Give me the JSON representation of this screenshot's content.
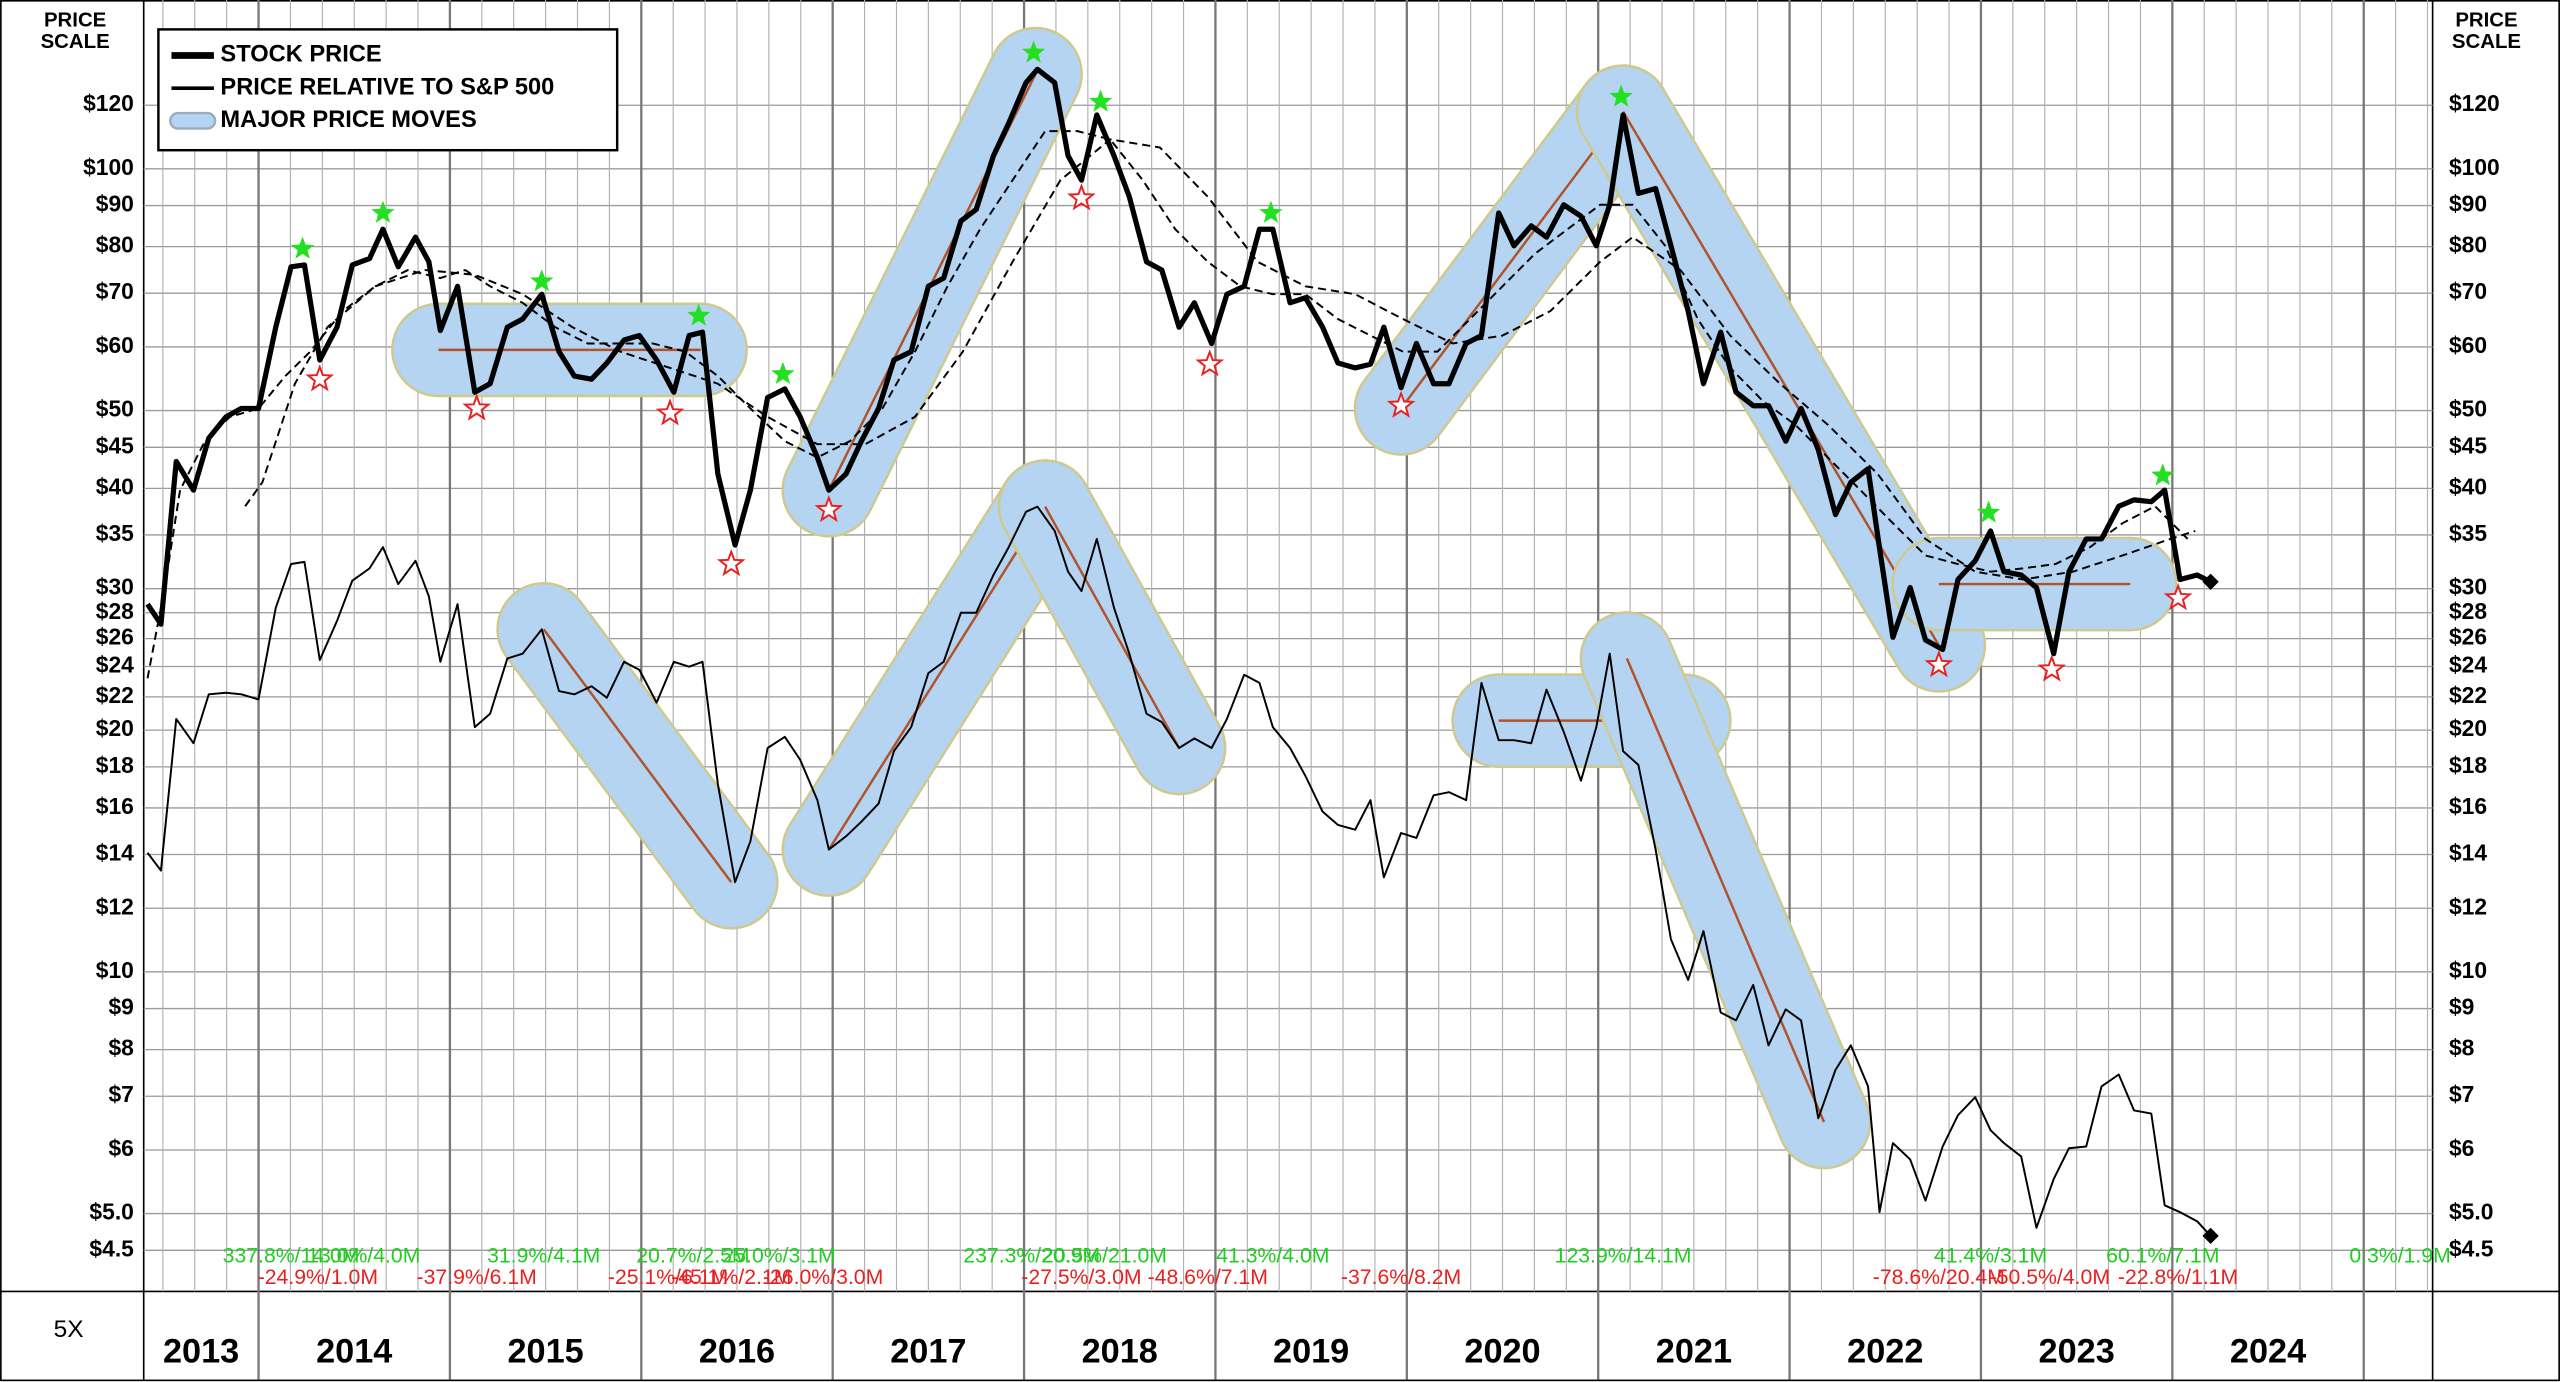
{
  "chart_data": {
    "type": "line",
    "log_scale": true,
    "grid": true,
    "legend": "upper left",
    "ylabel": [
      "PRICE",
      "SCALE"
    ],
    "scale_note": "5X",
    "xlim": [
      2013.4,
      2025.36
    ],
    "xticks": [
      {
        "value": 2013,
        "label": "2013"
      },
      {
        "value": 2014,
        "label": "2014"
      },
      {
        "value": 2015,
        "label": "2015"
      },
      {
        "value": 2016,
        "label": "2016"
      },
      {
        "value": 2017,
        "label": "2017"
      },
      {
        "value": 2018,
        "label": "2018"
      },
      {
        "value": 2019,
        "label": "2019"
      },
      {
        "value": 2020,
        "label": "2020"
      },
      {
        "value": 2021,
        "label": "2021"
      },
      {
        "value": 2022,
        "label": "2022"
      },
      {
        "value": 2023,
        "label": "2023"
      },
      {
        "value": 2024,
        "label": "2024"
      },
      {
        "value": 2025,
        "label": null
      }
    ],
    "ylim": [
      4,
      160
    ],
    "yticks": [
      {
        "value": 120,
        "label": "$120"
      },
      {
        "value": 100,
        "label": "$100"
      },
      {
        "value": 90,
        "label": "$90"
      },
      {
        "value": 80,
        "label": "$80"
      },
      {
        "value": 70,
        "label": "$70"
      },
      {
        "value": 60,
        "label": "$60"
      },
      {
        "value": 50,
        "label": "$50"
      },
      {
        "value": 45,
        "label": "$45"
      },
      {
        "value": 40,
        "label": "$40"
      },
      {
        "value": 35,
        "label": "$35"
      },
      {
        "value": 30,
        "label": "$30"
      },
      {
        "value": 28,
        "label": "$28"
      },
      {
        "value": 26,
        "label": "$26"
      },
      {
        "value": 24,
        "label": "$24"
      },
      {
        "value": 22,
        "label": "$22"
      },
      {
        "value": 20,
        "label": "$20"
      },
      {
        "value": 18,
        "label": "$18"
      },
      {
        "value": 16,
        "label": "$16"
      },
      {
        "value": 14,
        "label": "$14"
      },
      {
        "value": 12,
        "label": "$12"
      },
      {
        "value": 10,
        "label": "$10"
      },
      {
        "value": 9,
        "label": "$9"
      },
      {
        "value": 8,
        "label": "$8"
      },
      {
        "value": 7,
        "label": "$7"
      },
      {
        "value": 6,
        "label": "$6"
      },
      {
        "value": 5,
        "label": "$5.0"
      },
      {
        "value": 4.5,
        "label": "$4.5"
      }
    ],
    "x": [
      2013.42,
      2013.49,
      2013.57,
      2013.66,
      2013.74,
      2013.83,
      2013.91,
      2014.0,
      2014.09,
      2014.17,
      2014.24,
      2014.32,
      2014.41,
      2014.49,
      2014.58,
      2014.65,
      2014.73,
      2014.82,
      2014.89,
      2014.95,
      2015.04,
      2015.13,
      2015.21,
      2015.3,
      2015.38,
      2015.48,
      2015.57,
      2015.65,
      2015.74,
      2015.82,
      2015.91,
      2015.99,
      2016.08,
      2016.17,
      2016.25,
      2016.32,
      2016.4,
      2016.49,
      2016.57,
      2016.66,
      2016.75,
      2016.83,
      2016.92,
      2016.98,
      2017.07,
      2017.15,
      2017.24,
      2017.32,
      2017.41,
      2017.5,
      2017.58,
      2017.67,
      2017.75,
      2017.84,
      2017.92,
      2018.01,
      2018.07,
      2018.16,
      2018.23,
      2018.3,
      2018.38,
      2018.47,
      2018.55,
      2018.64,
      2018.72,
      2018.81,
      2018.89,
      2018.98,
      2019.06,
      2019.15,
      2019.23,
      2019.3,
      2019.39,
      2019.47,
      2019.56,
      2019.64,
      2019.73,
      2019.81,
      2019.88,
      2019.97,
      2020.05,
      2020.14,
      2020.22,
      2020.31,
      2020.39,
      2020.48,
      2020.56,
      2020.65,
      2020.73,
      2020.82,
      2020.91,
      2020.99,
      2021.06,
      2021.13,
      2021.21,
      2021.3,
      2021.38,
      2021.47,
      2021.55,
      2021.64,
      2021.72,
      2021.81,
      2021.89,
      2021.98,
      2022.06,
      2022.15,
      2022.24,
      2022.32,
      2022.41,
      2022.47,
      2022.54,
      2022.63,
      2022.71,
      2022.8,
      2022.88,
      2022.97,
      2023.05,
      2023.12,
      2023.21,
      2023.29,
      2023.38,
      2023.46,
      2023.55,
      2023.63,
      2023.72,
      2023.8,
      2023.89,
      2023.96,
      2024.04,
      2024.13,
      2024.2
    ],
    "series": [
      {
        "name": "STOCK PRICE",
        "color": "#000000",
        "width": 3.2,
        "values": [
          28.7,
          27.1,
          43.2,
          39.8,
          46.2,
          49.1,
          50.3,
          50.3,
          63.5,
          75.5,
          75.9,
          57.8,
          63.5,
          75.9,
          77.3,
          84.1,
          75.5,
          82.2,
          76.6,
          62.9,
          71.4,
          52.7,
          54.0,
          63.5,
          65.0,
          69.8,
          59.2,
          55.2,
          54.7,
          57.3,
          61.2,
          62.0,
          57.8,
          52.7,
          62.0,
          62.6,
          41.7,
          34.0,
          39.8,
          51.9,
          53.2,
          49.1,
          43.7,
          39.8,
          41.7,
          45.8,
          50.3,
          57.8,
          59.2,
          71.4,
          73.1,
          86.1,
          89.0,
          103.8,
          114,
          128,
          133,
          128,
          103.8,
          96.8,
          116.7,
          103.8,
          92.3,
          76.6,
          74.8,
          63.5,
          68.1,
          60.6,
          69.8,
          71.4,
          84.1,
          84.1,
          68.1,
          69.1,
          63.5,
          57.3,
          56.5,
          57.1,
          63.5,
          53.4,
          60.6,
          54.0,
          54.0,
          60.6,
          62.0,
          88.1,
          80.2,
          84.9,
          82.2,
          90.2,
          87.3,
          80.2,
          90.2,
          116.7,
          93.2,
          94.5,
          80.2,
          66.5,
          54.0,
          62.6,
          52.7,
          50.7,
          50.7,
          45.8,
          50.3,
          44.7,
          37.1,
          40.7,
          42.3,
          33.7,
          26.1,
          30.1,
          25.9,
          25.2,
          30.8,
          32.5,
          35.4,
          31.5,
          31.2,
          30.1,
          24.9,
          31.5,
          34.6,
          34.6,
          38.0,
          38.7,
          38.5,
          39.8,
          30.8,
          31.2,
          30.6
        ]
      },
      {
        "name": "PRICE RELATIVE TO S&P 500",
        "color": "#000000",
        "width": 1.2,
        "values": [
          14.07,
          13.37,
          20.65,
          19.26,
          22.16,
          22.26,
          22.16,
          21.84,
          28.4,
          32.2,
          32.4,
          24.45,
          27.35,
          30.7,
          31.8,
          33.8,
          30.4,
          32.5,
          29.35,
          24.33,
          28.7,
          20.17,
          20.96,
          24.56,
          24.9,
          26.7,
          22.37,
          22.16,
          22.68,
          21.95,
          24.33,
          23.77,
          21.64,
          24.33,
          23.99,
          24.33,
          17.14,
          12.93,
          14.54,
          19.0,
          19.62,
          18.37,
          16.36,
          14.2,
          14.75,
          15.38,
          16.2,
          18.83,
          20.17,
          23.55,
          24.33,
          28.0,
          28.0,
          31.2,
          33.8,
          37.4,
          37.96,
          35.4,
          31.5,
          29.8,
          34.6,
          28.4,
          24.9,
          20.96,
          20.46,
          19.0,
          19.53,
          19.0,
          20.65,
          23.44,
          22.9,
          20.17,
          19.0,
          17.54,
          15.83,
          15.24,
          15.03,
          16.36,
          13.11,
          14.89,
          14.68,
          16.59,
          16.74,
          16.36,
          22.9,
          19.43,
          19.43,
          19.26,
          22.46,
          19.9,
          17.3,
          20.17,
          24.9,
          18.83,
          18.1,
          14.2,
          10.98,
          9.77,
          11.24,
          8.9,
          8.7,
          9.63,
          8.1,
          8.98,
          8.7,
          6.57,
          7.55,
          8.1,
          7.2,
          5.02,
          6.12,
          5.84,
          5.19,
          6.06,
          6.63,
          6.98,
          6.35,
          6.12,
          5.89,
          4.8,
          5.52,
          6.03,
          6.06,
          7.2,
          7.45,
          6.72,
          6.66,
          5.12,
          5.02,
          4.89,
          4.69
        ]
      }
    ],
    "moving_averages": [
      {
        "color": "#000000",
        "x": [
          2013.42,
          2013.51,
          2013.59,
          2013.72,
          2013.85,
          2014.0,
          2014.14,
          2014.27,
          2014.44,
          2014.61,
          2014.78,
          2014.95,
          2015.08,
          2015.21,
          2015.38,
          2015.55,
          2015.72,
          2015.89,
          2016.06,
          2016.23,
          2016.4,
          2016.57,
          2016.75,
          2016.92,
          2017.09,
          2017.26,
          2017.43,
          2017.6,
          2017.77,
          2017.94,
          2018.11,
          2018.28,
          2018.45,
          2018.62,
          2018.79,
          2018.96,
          2019.13,
          2019.3,
          2019.47,
          2019.64,
          2019.81,
          2019.98,
          2020.16,
          2020.33,
          2020.5,
          2020.67,
          2020.84,
          2021.01,
          2021.18,
          2021.35,
          2021.52,
          2021.69,
          2021.86,
          2022.03,
          2022.2,
          2022.37,
          2022.54,
          2022.71,
          2022.88,
          2023.05,
          2023.22,
          2023.39,
          2023.57,
          2023.74,
          2023.91,
          2024.08
        ],
        "values": [
          23.2,
          30.1,
          39.8,
          45.8,
          49.1,
          50.3,
          55.2,
          59.2,
          66.5,
          71.4,
          74.8,
          73.1,
          74.8,
          71.4,
          68.1,
          63.5,
          60.6,
          60.6,
          60.6,
          59.2,
          55.2,
          50.3,
          45.8,
          43.7,
          45.8,
          50.3,
          59.2,
          71.4,
          84.1,
          96.8,
          111.4,
          111.4,
          108.8,
          96.8,
          84.1,
          76.6,
          71.4,
          69.8,
          69.8,
          65.0,
          62.0,
          59.2,
          59.2,
          65.0,
          71.4,
          78.4,
          84.1,
          90.2,
          90.2,
          80.2,
          65.0,
          56.5,
          51.4,
          48.0,
          43.7,
          39.8,
          36.2,
          33.0,
          32.2,
          31.5,
          31.8,
          32.2,
          33.8,
          36.2,
          38.0,
          34.6
        ]
      },
      {
        "color": "#000000",
        "x": [
          2013.93,
          2014.02,
          2014.19,
          2014.36,
          2014.61,
          2014.87,
          2015.13,
          2015.38,
          2015.64,
          2015.89,
          2016.15,
          2016.4,
          2016.66,
          2016.92,
          2017.17,
          2017.43,
          2017.68,
          2017.94,
          2018.19,
          2018.45,
          2018.71,
          2018.96,
          2019.22,
          2019.47,
          2019.73,
          2019.98,
          2020.24,
          2020.5,
          2020.75,
          2021.01,
          2021.18,
          2021.43,
          2021.69,
          2021.95,
          2022.2,
          2022.46,
          2022.71,
          2022.97,
          2023.22,
          2023.48,
          2023.74,
          2023.99,
          2024.12
        ],
        "values": [
          38.0,
          40.7,
          54.0,
          63.5,
          71.4,
          74.8,
          73.8,
          69.8,
          63.5,
          59.2,
          56.5,
          54.0,
          49.1,
          45.4,
          45.4,
          49.1,
          59.2,
          76.6,
          96.8,
          108.8,
          106.3,
          92.3,
          76.6,
          71.4,
          69.8,
          65.0,
          60.6,
          62.0,
          66.5,
          76.6,
          82.2,
          74.8,
          62.0,
          54.0,
          48.0,
          41.7,
          34.6,
          31.5,
          30.8,
          31.5,
          33.0,
          34.6,
          35.4
        ]
      }
    ],
    "moves": {
      "label": "MAJOR PRICE MOVES",
      "color": "#b4d4f2",
      "line_color": "#b0532b",
      "items": [
        {
          "x": [
            2014.94,
            2016.31
          ],
          "values": [
            59.5,
            59.5
          ]
        },
        {
          "x": [
            2016.98,
            2018.06
          ],
          "values": [
            39.8,
            131.2
          ]
        },
        {
          "x": [
            2019.97,
            2021.13
          ],
          "values": [
            50.3,
            117.8
          ]
        },
        {
          "x": [
            2021.13,
            2022.78
          ],
          "values": [
            117.8,
            25.5
          ]
        },
        {
          "x": [
            2022.78,
            2023.78
          ],
          "values": [
            30.4,
            30.4
          ]
        },
        {
          "x": [
            2015.49,
            2016.47
          ],
          "values": [
            26.7,
            12.93
          ]
        },
        {
          "x": [
            2016.98,
            2018.11
          ],
          "values": [
            14.2,
            37.96
          ]
        },
        {
          "x": [
            2018.11,
            2018.81
          ],
          "values": [
            37.96,
            19.0
          ]
        },
        {
          "x": [
            2020.48,
            2021.45
          ],
          "values": [
            20.55,
            20.55
          ]
        },
        {
          "x": [
            2021.15,
            2022.18
          ],
          "values": [
            24.56,
            6.5
          ]
        }
      ]
    },
    "highs": {
      "color": "#22e022",
      "x": [
        2014.23,
        2014.65,
        2015.48,
        2016.3,
        2016.74,
        2018.05,
        2018.4,
        2019.29,
        2021.12,
        2023.04,
        2023.95
      ],
      "values": [
        79.5,
        88.1,
        72.4,
        65.6,
        55.5,
        139.5,
        121.2,
        88.1,
        122.9,
        37.3,
        41.5
      ]
    },
    "lows": {
      "color": "#e82020",
      "x": [
        2014.32,
        2015.14,
        2016.15,
        2016.47,
        2016.98,
        2018.3,
        2018.97,
        2019.97,
        2022.78,
        2023.37,
        2024.03
      ],
      "values": [
        54.7,
        50.3,
        49.6,
        32.2,
        37.6,
        91.9,
        57.1,
        50.7,
        24.1,
        23.8,
        29.2
      ]
    },
    "annotations": [
      {
        "text": "337.8%/14.0M",
        "x": 2014.17,
        "color": "#22cc22"
      },
      {
        "text": "13.0%/4.0M",
        "x": 2014.55,
        "color": "#22cc22"
      },
      {
        "text": "31.9%/4.1M",
        "x": 2015.49,
        "color": "#22cc22"
      },
      {
        "text": "20.7%/2.5M",
        "x": 2016.27,
        "color": "#22cc22"
      },
      {
        "text": "25.0%/3.1M",
        "x": 2016.72,
        "color": "#22cc22"
      },
      {
        "text": "237.3%/20.9M",
        "x": 2018.04,
        "color": "#22cc22"
      },
      {
        "text": "20.5%/21.0M",
        "x": 2018.42,
        "color": "#22cc22"
      },
      {
        "text": "41.3%/4.0M",
        "x": 2019.3,
        "color": "#22cc22"
      },
      {
        "text": "123.9%/14.1M",
        "x": 2021.13,
        "color": "#22cc22"
      },
      {
        "text": "41.4%/3.1M",
        "x": 2023.05,
        "color": "#22cc22"
      },
      {
        "text": "60.1%/7.1M",
        "x": 2023.95,
        "color": "#22cc22"
      },
      {
        "text": "0.3%/1.9M",
        "x": 2025.19,
        "color": "#22cc22"
      },
      {
        "text": "-24.9%/1.0M",
        "x": 2014.31,
        "color": "#e82020"
      },
      {
        "text": "-37.9%/6.1M",
        "x": 2015.14,
        "color": "#e82020"
      },
      {
        "text": "-25.1%/6.1M",
        "x": 2016.14,
        "color": "#e82020"
      },
      {
        "text": "-45.1%/2.1M",
        "x": 2016.47,
        "color": "#e82020"
      },
      {
        "text": "-26.0%/3.0M",
        "x": 2016.95,
        "color": "#e82020"
      },
      {
        "text": "-27.5%/3.0M",
        "x": 2018.3,
        "color": "#e82020"
      },
      {
        "text": "-48.6%/7.1M",
        "x": 2018.96,
        "color": "#e82020"
      },
      {
        "text": "-37.6%/8.2M",
        "x": 2019.97,
        "color": "#e82020"
      },
      {
        "text": "-78.6%/20.4M",
        "x": 2022.78,
        "color": "#e82020"
      },
      {
        "text": "-50.5%/4.0M",
        "x": 2023.36,
        "color": "#e82020"
      },
      {
        "text": "-22.8%/1.1M",
        "x": 2024.03,
        "color": "#e82020"
      }
    ]
  }
}
